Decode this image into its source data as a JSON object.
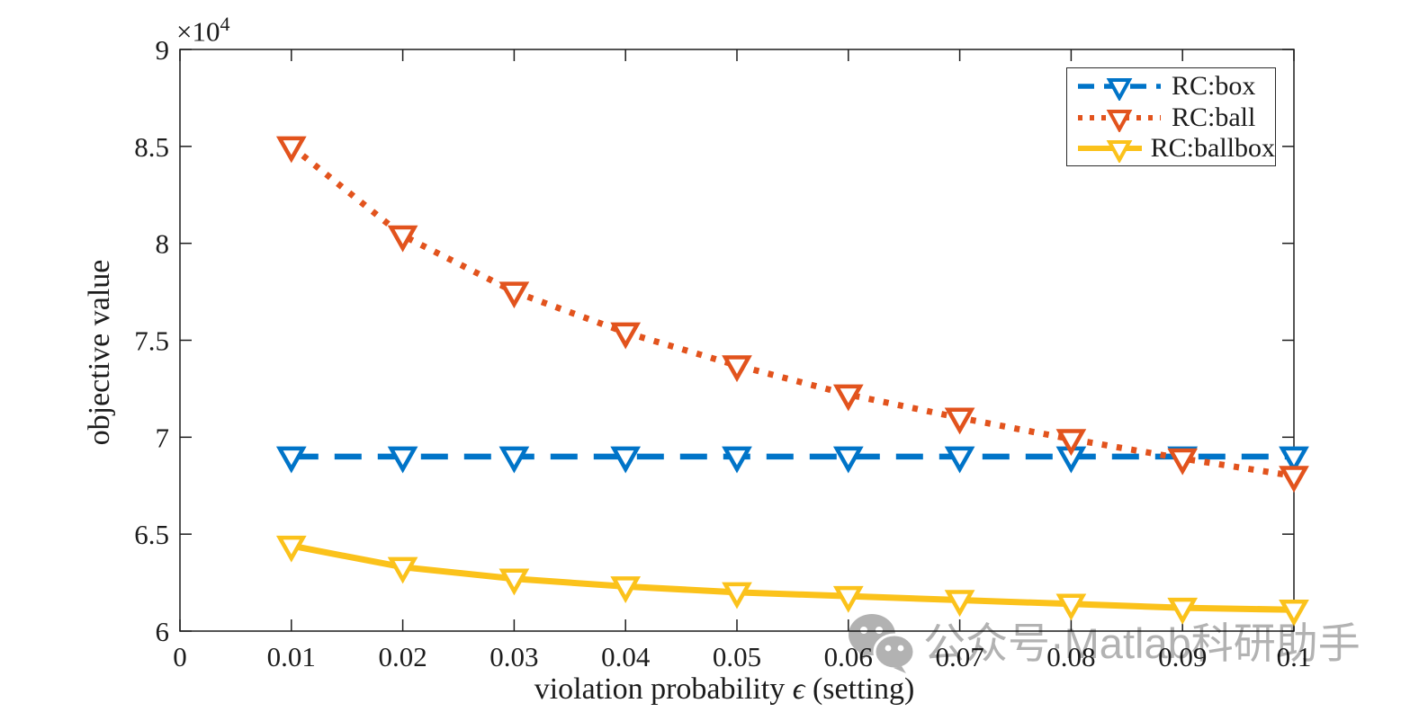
{
  "figure": {
    "background": "#ffffff",
    "axis_color": "#1c1c1c",
    "watermark": {
      "text": "公众号·Matlab科研助手",
      "icon": "wechat-icon",
      "color": "#b2b2b2"
    }
  },
  "chart_data": {
    "type": "line",
    "title": "",
    "xlabel_prefix": "violation probability ",
    "xlabel_symbol": "ϵ",
    "xlabel_suffix": " (setting)",
    "ylabel": "objective value",
    "y_multiplier_label": "×10",
    "y_multiplier_exponent": "4",
    "xlim": [
      0,
      0.1
    ],
    "ylim_e4": [
      6,
      9
    ],
    "grid": false,
    "x_ticks": [
      0,
      0.01,
      0.02,
      0.03,
      0.04,
      0.05,
      0.06,
      0.07,
      0.08,
      0.09,
      0.1
    ],
    "x_tick_labels": [
      "0",
      "0.01",
      "0.02",
      "0.03",
      "0.04",
      "0.05",
      "0.06",
      "0.07",
      "0.08",
      "0.09",
      "0.1"
    ],
    "y_ticks_e4": [
      6,
      6.5,
      7,
      7.5,
      8,
      8.5,
      9
    ],
    "y_tick_labels": [
      "6",
      "6.5",
      "7",
      "7.5",
      "8",
      "8.5",
      "9"
    ],
    "x": [
      0.01,
      0.02,
      0.03,
      0.04,
      0.05,
      0.06,
      0.07,
      0.08,
      0.09,
      0.1
    ],
    "series": [
      {
        "name": "RC:box",
        "color": "#0074C8",
        "line_style": "dashed",
        "marker": "triangle-down",
        "values_e4": [
          6.9,
          6.9,
          6.9,
          6.9,
          6.9,
          6.9,
          6.9,
          6.9,
          6.9,
          6.9
        ]
      },
      {
        "name": "RC:ball",
        "color": "#E2531D",
        "line_style": "dotted",
        "marker": "triangle-down",
        "values_e4": [
          8.5,
          8.04,
          7.75,
          7.54,
          7.37,
          7.22,
          7.1,
          6.99,
          6.89,
          6.8
        ]
      },
      {
        "name": "RC:ballbox",
        "color": "#FBC21B",
        "line_style": "solid",
        "marker": "triangle-down",
        "values_e4": [
          6.44,
          6.33,
          6.27,
          6.23,
          6.2,
          6.18,
          6.16,
          6.14,
          6.12,
          6.11
        ]
      }
    ],
    "legend_position": "top-right"
  }
}
